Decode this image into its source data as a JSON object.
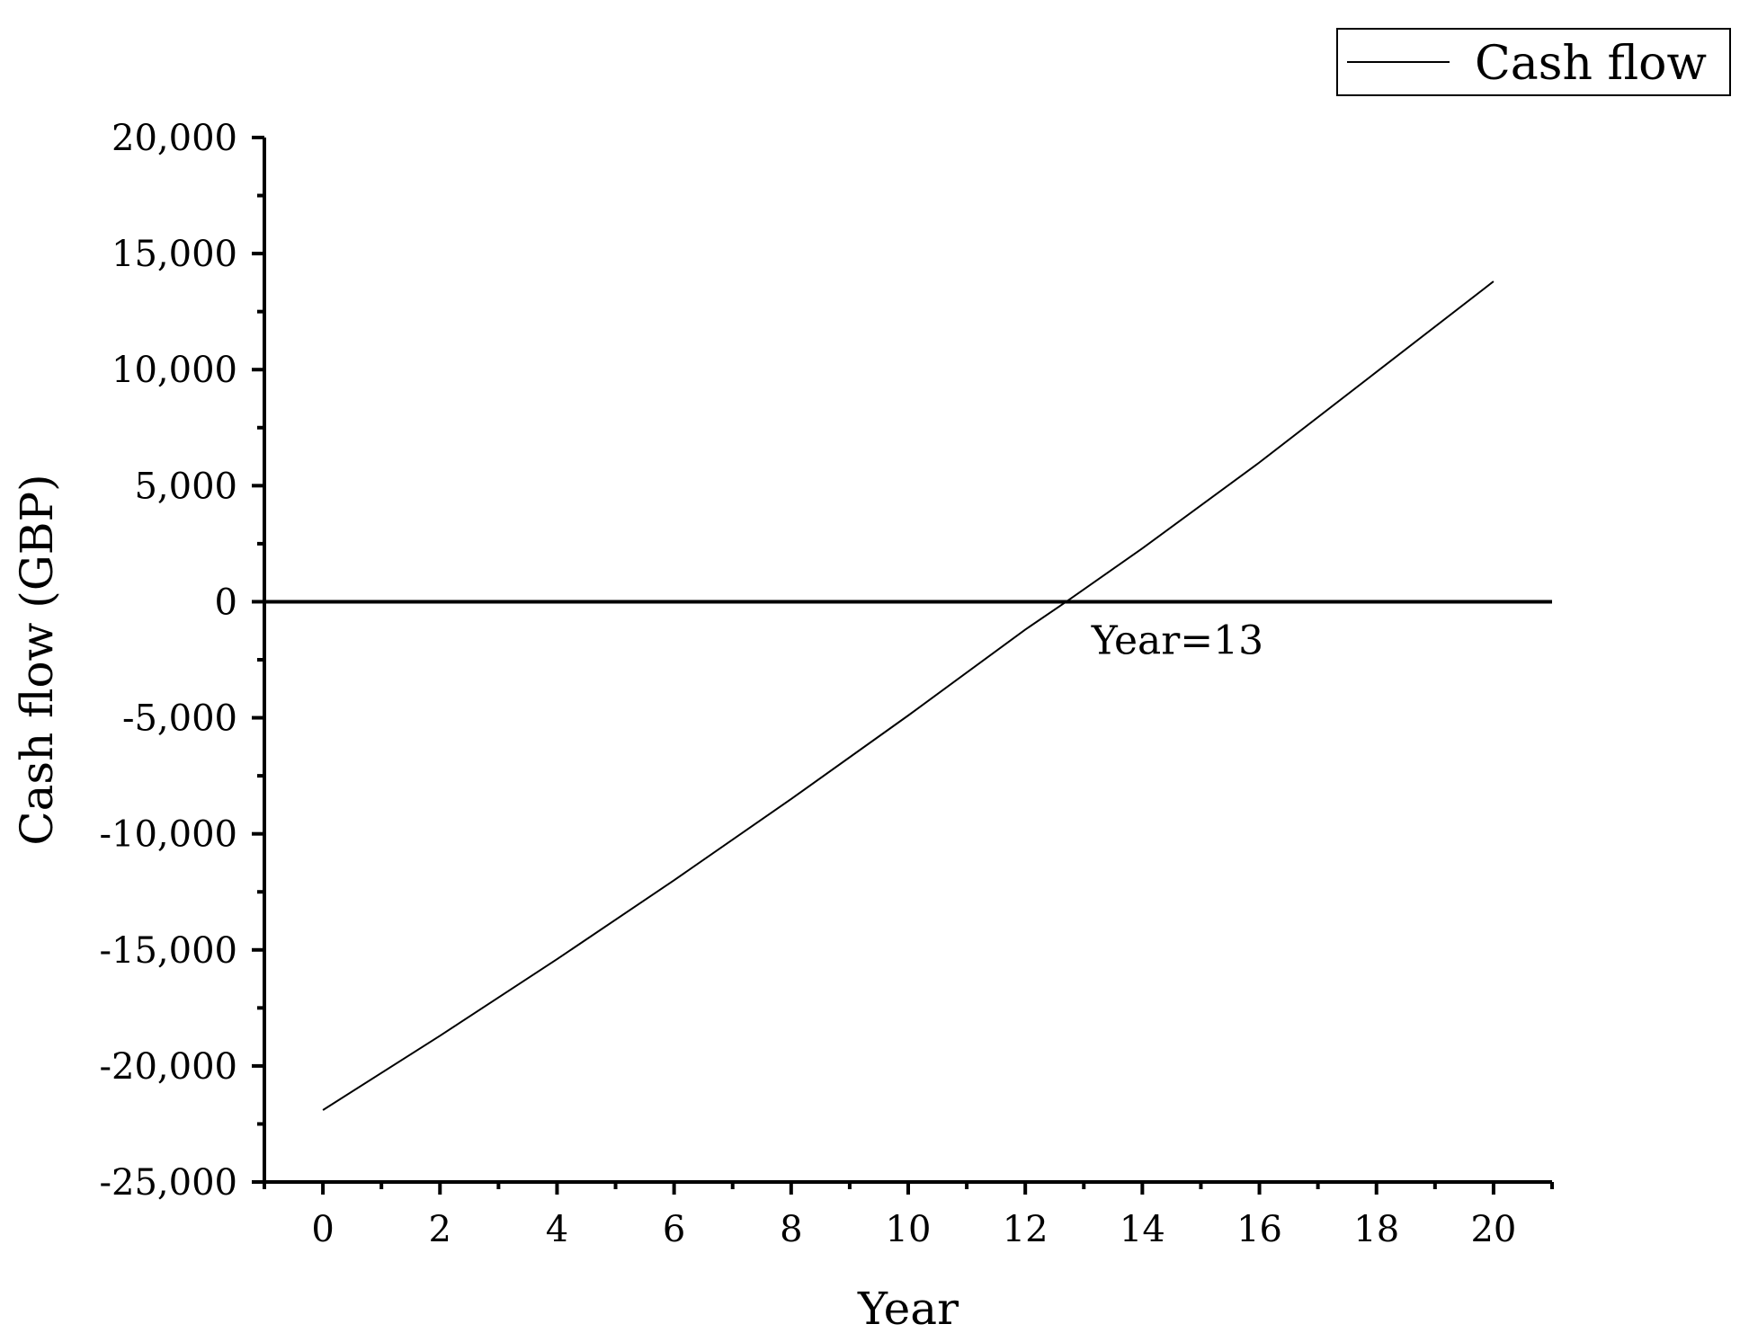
{
  "chart_data": {
    "type": "line",
    "xlabel": "Year",
    "ylabel": "Cash flow (GBP)",
    "xlim": [
      -1,
      21
    ],
    "ylim": [
      -25000,
      20000
    ],
    "x_ticks": [
      0,
      2,
      4,
      6,
      8,
      10,
      12,
      14,
      16,
      18,
      20
    ],
    "x_tick_labels": [
      "0",
      "2",
      "4",
      "6",
      "8",
      "10",
      "12",
      "14",
      "16",
      "18",
      "20"
    ],
    "y_ticks": [
      -25000,
      -20000,
      -15000,
      -10000,
      -5000,
      0,
      5000,
      10000,
      15000,
      20000
    ],
    "y_tick_labels": [
      "-25,000",
      "-20,000",
      "-15,000",
      "-10,000",
      "-5,000",
      "0",
      "5,000",
      "10,000",
      "15,000",
      "20,000"
    ],
    "grid": false,
    "legend": {
      "position": "top-right",
      "entries": [
        "Cash flow"
      ]
    },
    "series": [
      {
        "name": "Cash flow",
        "color": "#000000",
        "x": [
          0,
          2,
          4,
          6,
          8,
          10,
          12,
          12.7,
          14,
          16,
          18,
          20
        ],
        "y": [
          -21900,
          -18700,
          -15400,
          -12000,
          -8500,
          -4900,
          -1200,
          0,
          2300,
          6000,
          9900,
          13800
        ]
      }
    ],
    "reference_lines": [
      {
        "axis": "y",
        "value": 0
      }
    ],
    "annotations": [
      {
        "text": "Year=13",
        "x": 12.7,
        "y": 0
      }
    ]
  }
}
